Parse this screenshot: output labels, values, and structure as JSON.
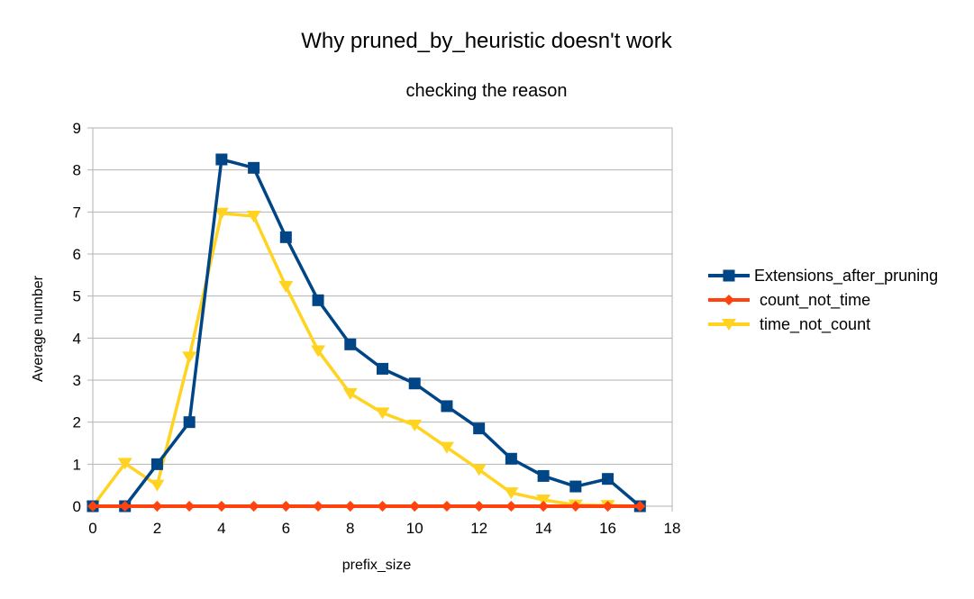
{
  "chart_data": {
    "type": "line",
    "title": "Why pruned_by_heuristic doesn't work",
    "subtitle": "checking the reason",
    "xlabel": "prefix_size",
    "ylabel": "Average number",
    "xlim": [
      0,
      18
    ],
    "ylim": [
      0,
      9
    ],
    "xticks": [
      "0",
      "2",
      "4",
      "6",
      "8",
      "10",
      "12",
      "14",
      "16",
      "18"
    ],
    "yticks": [
      "0",
      "1",
      "2",
      "3",
      "4",
      "5",
      "6",
      "7",
      "8",
      "9"
    ],
    "grid": "horizontal",
    "legend_position": "right",
    "series": [
      {
        "name": "Extensions_after_pruning",
        "color": "#004586",
        "marker": "square",
        "x": [
          0,
          1,
          2,
          3,
          4,
          5,
          6,
          7,
          8,
          9,
          10,
          11,
          12,
          13,
          14,
          15,
          16,
          17
        ],
        "y": [
          0,
          0,
          1.0,
          2.0,
          8.25,
          8.05,
          6.4,
          4.9,
          3.85,
          3.27,
          2.92,
          2.38,
          1.85,
          1.13,
          0.72,
          0.47,
          0.65,
          0
        ]
      },
      {
        "name": "count_not_time",
        "color": "#ff420e",
        "marker": "diamond",
        "x": [
          0,
          1,
          2,
          3,
          4,
          5,
          6,
          7,
          8,
          9,
          10,
          11,
          12,
          13,
          14,
          15,
          16,
          17
        ],
        "y": [
          0,
          0,
          0,
          0,
          0,
          0,
          0,
          0,
          0,
          0,
          0,
          0,
          0,
          0,
          0,
          0,
          0,
          0
        ]
      },
      {
        "name": "time_not_count",
        "color": "#ffd320",
        "marker": "triangle-down",
        "x": [
          0,
          1,
          2,
          3,
          4,
          5,
          6,
          7,
          8,
          9,
          10,
          11,
          12,
          13,
          14,
          15,
          16,
          17
        ],
        "y": [
          0,
          1.02,
          0.5,
          3.55,
          6.97,
          6.9,
          5.23,
          3.7,
          2.68,
          2.22,
          1.93,
          1.4,
          0.87,
          0.32,
          0.15,
          0.03,
          0.02,
          0
        ]
      }
    ]
  }
}
